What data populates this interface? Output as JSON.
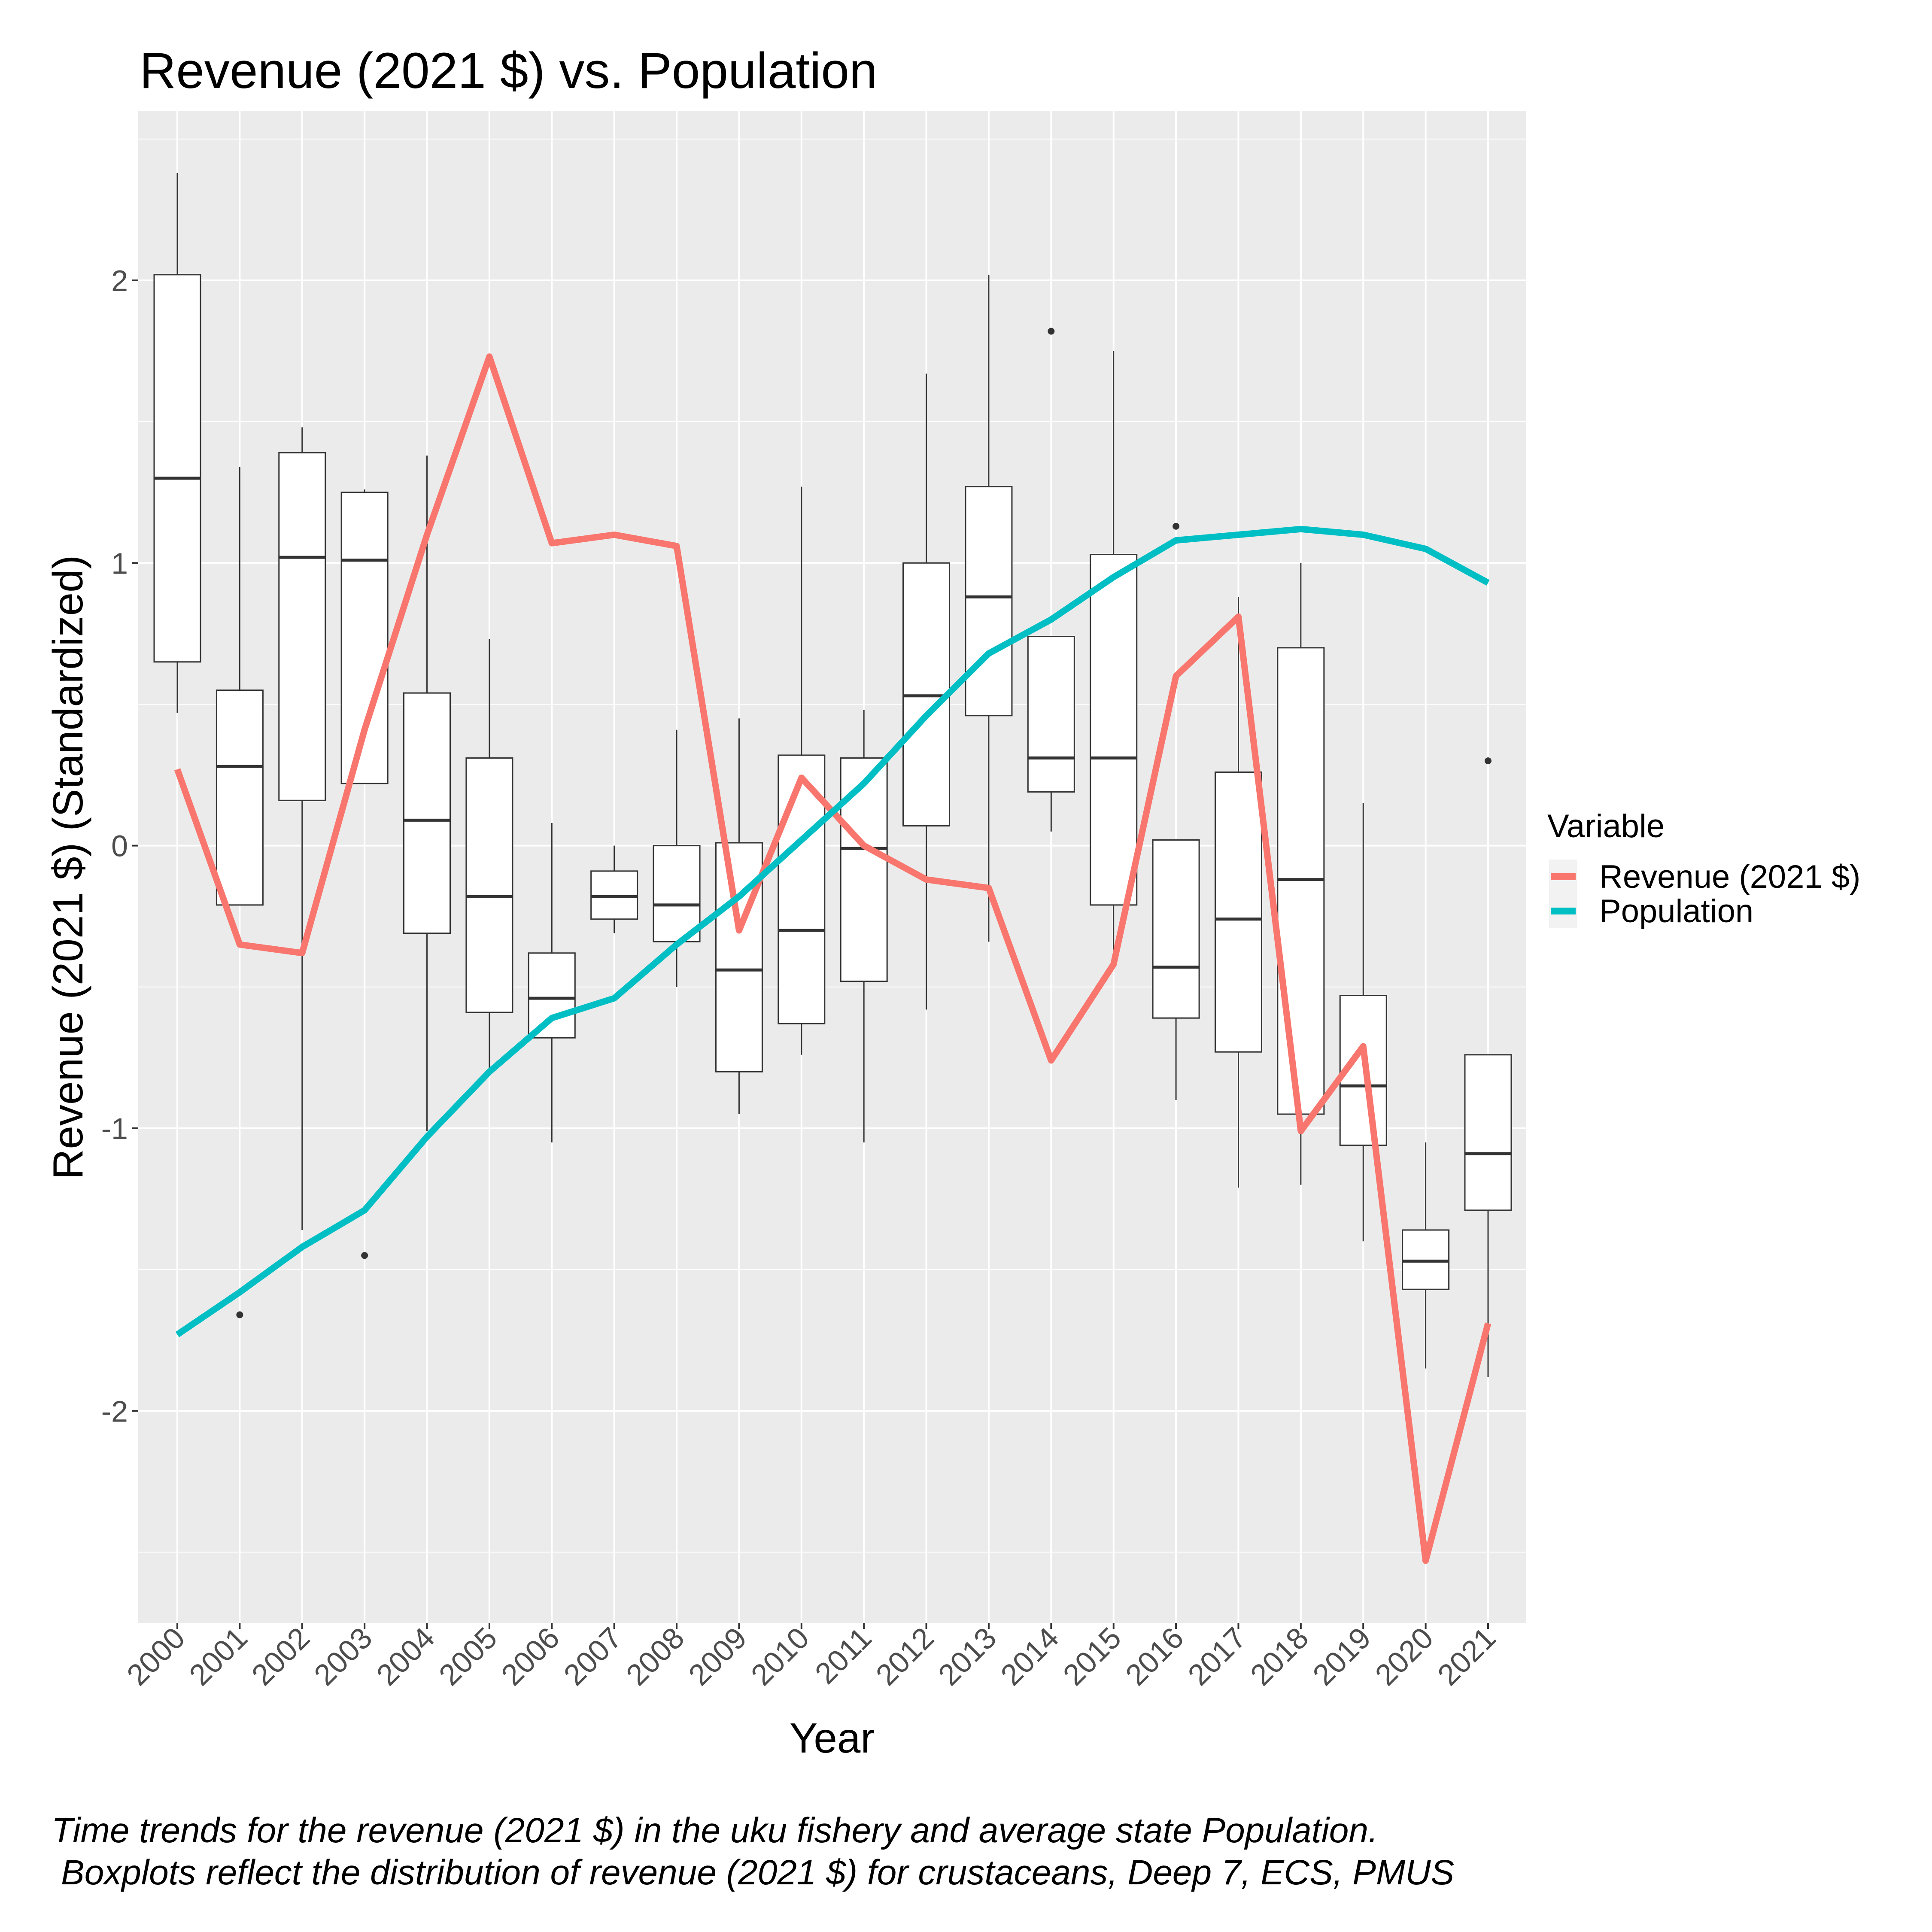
{
  "chart_data": {
    "type": "box",
    "title": "Revenue (2021 $) vs. Population",
    "xlabel": "Year",
    "ylabel": "Revenue (2021 $) (Standardized)",
    "ylim": [
      -2.75,
      2.6
    ],
    "yticks": [
      -2,
      -1,
      0,
      1,
      2
    ],
    "yticklabels": [
      "-2",
      "-1",
      "0",
      "1",
      "2"
    ],
    "categories": [
      "2000",
      "2001",
      "2002",
      "2003",
      "2004",
      "2005",
      "2006",
      "2007",
      "2008",
      "2009",
      "2010",
      "2011",
      "2012",
      "2013",
      "2014",
      "2015",
      "2016",
      "2017",
      "2018",
      "2019",
      "2020",
      "2021"
    ],
    "grid": true,
    "legend": {
      "title": "Variable",
      "position": "right",
      "entries": [
        "Revenue (2021 $)",
        "Population"
      ]
    },
    "boxes": [
      {
        "min": 0.47,
        "q1": 0.65,
        "median": 1.3,
        "q3": 2.02,
        "max": 2.38,
        "outliers": []
      },
      {
        "min": -0.21,
        "q1": -0.21,
        "median": 0.28,
        "q3": 0.55,
        "max": 1.34,
        "outliers": [
          -1.66
        ]
      },
      {
        "min": -1.36,
        "q1": 0.16,
        "median": 1.02,
        "q3": 1.39,
        "max": 1.48,
        "outliers": []
      },
      {
        "min": 0.22,
        "q1": 0.22,
        "median": 1.01,
        "q3": 1.25,
        "max": 1.26,
        "outliers": [
          -1.45
        ]
      },
      {
        "min": -1.01,
        "q1": -0.31,
        "median": 0.09,
        "q3": 0.54,
        "max": 1.38,
        "outliers": []
      },
      {
        "min": -0.79,
        "q1": -0.59,
        "median": -0.18,
        "q3": 0.31,
        "max": 0.73,
        "outliers": []
      },
      {
        "min": -1.05,
        "q1": -0.68,
        "median": -0.54,
        "q3": -0.38,
        "max": 0.08,
        "outliers": []
      },
      {
        "min": -0.31,
        "q1": -0.26,
        "median": -0.18,
        "q3": -0.09,
        "max": 0.0,
        "outliers": []
      },
      {
        "min": -0.5,
        "q1": -0.34,
        "median": -0.21,
        "q3": 0.0,
        "max": 0.41,
        "outliers": []
      },
      {
        "min": -0.95,
        "q1": -0.8,
        "median": -0.44,
        "q3": 0.01,
        "max": 0.45,
        "outliers": []
      },
      {
        "min": -0.74,
        "q1": -0.63,
        "median": -0.3,
        "q3": 0.32,
        "max": 1.27,
        "outliers": []
      },
      {
        "min": -1.05,
        "q1": -0.48,
        "median": -0.01,
        "q3": 0.31,
        "max": 0.48,
        "outliers": []
      },
      {
        "min": -0.58,
        "q1": 0.07,
        "median": 0.53,
        "q3": 1.0,
        "max": 1.67,
        "outliers": []
      },
      {
        "min": -0.34,
        "q1": 0.46,
        "median": 0.88,
        "q3": 1.27,
        "max": 2.02,
        "outliers": []
      },
      {
        "min": 0.05,
        "q1": 0.19,
        "median": 0.31,
        "q3": 0.74,
        "max": 0.74,
        "outliers": [
          1.82
        ]
      },
      {
        "min": -0.37,
        "q1": -0.21,
        "median": 0.31,
        "q3": 1.03,
        "max": 1.75,
        "outliers": []
      },
      {
        "min": -0.9,
        "q1": -0.61,
        "median": -0.43,
        "q3": 0.02,
        "max": 0.02,
        "outliers": [
          1.13
        ]
      },
      {
        "min": -1.21,
        "q1": -0.73,
        "median": -0.26,
        "q3": 0.26,
        "max": 0.88,
        "outliers": []
      },
      {
        "min": -1.2,
        "q1": -0.95,
        "median": -0.12,
        "q3": 0.7,
        "max": 1.0,
        "outliers": []
      },
      {
        "min": -1.4,
        "q1": -1.06,
        "median": -0.85,
        "q3": -0.53,
        "max": 0.15,
        "outliers": []
      },
      {
        "min": -1.85,
        "q1": -1.57,
        "median": -1.47,
        "q3": -1.36,
        "max": -1.05,
        "outliers": []
      },
      {
        "min": -1.88,
        "q1": -1.29,
        "median": -1.09,
        "q3": -0.74,
        "max": -0.74,
        "outliers": [
          0.3
        ]
      }
    ],
    "series": [
      {
        "name": "Revenue (2021 $)",
        "color": "#F8766D",
        "values": [
          0.27,
          -0.35,
          -0.38,
          0.41,
          1.1,
          1.73,
          1.07,
          1.1,
          1.06,
          -0.3,
          0.24,
          0.0,
          -0.12,
          -0.15,
          -0.76,
          -0.42,
          0.6,
          0.81,
          -1.01,
          -0.71,
          -2.53,
          -1.69
        ]
      },
      {
        "name": "Population",
        "color": "#00BFC4",
        "values": [
          -1.73,
          -1.58,
          -1.42,
          -1.29,
          -1.03,
          -0.8,
          -0.61,
          -0.54,
          -0.35,
          -0.18,
          0.02,
          0.22,
          0.46,
          0.68,
          0.8,
          0.95,
          1.08,
          1.1,
          1.12,
          1.1,
          1.05,
          0.93
        ]
      }
    ]
  },
  "caption": {
    "line1": "Time trends for the revenue (2021 $) in the uku fishery and average state Population.",
    "line2": "Boxplots reflect the distribution of revenue (2021 $) for crustaceans, Deep 7, ECS, PMUS"
  }
}
